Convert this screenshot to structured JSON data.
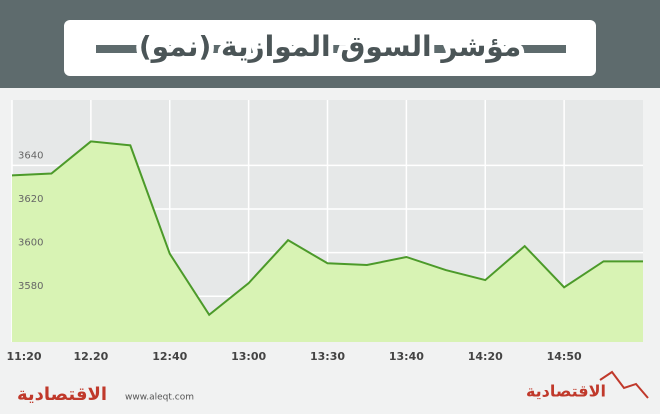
{
  "chart_data": {
    "type": "line",
    "title": "مؤشر السوق الموازية (نمو)",
    "categories": [
      "11:20",
      null,
      "12.20",
      null,
      "12:40",
      null,
      "13:00",
      null,
      "13:30",
      null,
      "13:40",
      null,
      "14:20",
      null,
      "14:50",
      null,
      null
    ],
    "series": [
      {
        "name": "نمو",
        "color": "#4c9a2a",
        "values": [
          3635.4,
          3636.3,
          3651,
          3649.2,
          3599.5,
          3571.5,
          3586,
          3605.7,
          3595.1,
          3594.3,
          3598,
          3592,
          3587.4,
          3603,
          3584.1,
          3596,
          3596
        ]
      }
    ],
    "area_color": "#d8f3b4",
    "ylim": [
      3559,
      3670
    ],
    "yticks": [
      3580,
      3600,
      3620,
      3640
    ],
    "grid": true
  },
  "footer": {
    "logo_left": "الاقتصادية",
    "url": "www.aleqt.com",
    "logo_right": "الاقتصادية"
  }
}
